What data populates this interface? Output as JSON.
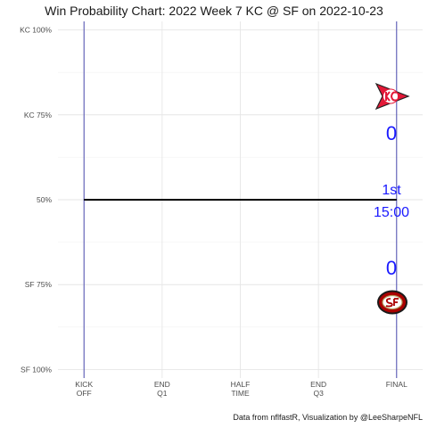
{
  "chart_data": {
    "type": "line",
    "title": "Win Probability Chart: 2022 Week 7 KC @ SF on 2022-10-23",
    "caption": "Data from nflfastR, Visualization by @LeeSharpeNFL",
    "xlabel": "",
    "ylabel": "",
    "x_ticks": [
      {
        "value": 0,
        "lines": [
          "KICK",
          "OFF"
        ]
      },
      {
        "value": 15,
        "lines": [
          "END",
          "Q1"
        ]
      },
      {
        "value": 30,
        "lines": [
          "HALF",
          "TIME"
        ]
      },
      {
        "value": 45,
        "lines": [
          "END",
          "Q3"
        ]
      },
      {
        "value": 60,
        "lines": [
          "FINAL"
        ]
      }
    ],
    "xlim": [
      -5,
      65
    ],
    "y_ticks": [
      {
        "value": 0,
        "label": "SF 100%"
      },
      {
        "value": 0.25,
        "label": "SF 75%"
      },
      {
        "value": 0.5,
        "label": "50%"
      },
      {
        "value": 0.75,
        "label": "KC 75%"
      },
      {
        "value": 1,
        "label": "KC 100%"
      }
    ],
    "ylim": [
      0,
      1
    ],
    "series": [
      {
        "x": [
          0,
          60
        ],
        "values": [
          0.5,
          0.5
        ],
        "color": "#000000"
      }
    ],
    "vlines": [
      0,
      60
    ],
    "vline_color": "#4b4bb0",
    "annotations": {
      "kc_score": "0",
      "sf_score": "0",
      "quarter": "1st",
      "clock": "15:00",
      "color": "#1a1aff"
    },
    "logos": {
      "top": "KC",
      "bottom": "SF"
    },
    "grid": true,
    "legend": "none"
  }
}
